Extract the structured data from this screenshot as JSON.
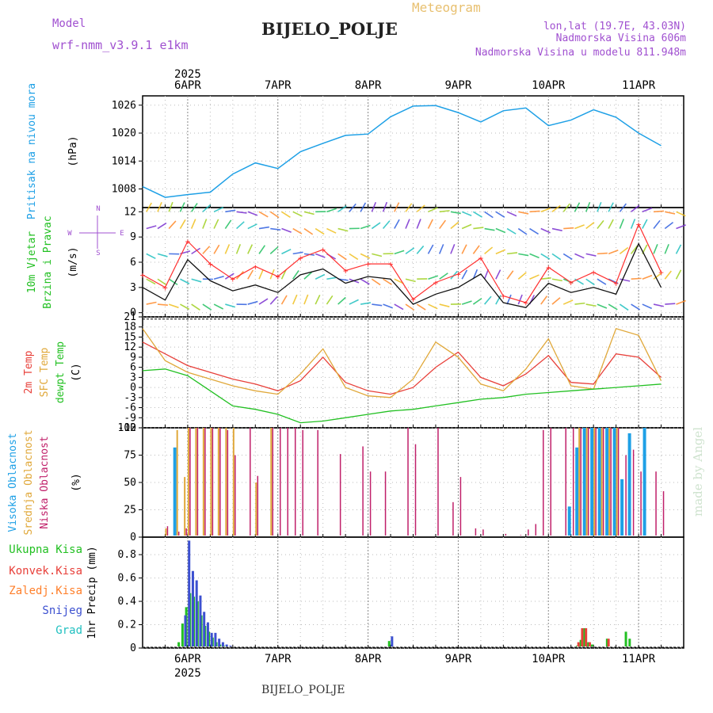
{
  "header": {
    "model_label": "Model",
    "model_name": "wrf-nmm_v3.9.1  e1km",
    "product": "Meteogram",
    "station": "BIJELO_POLJE",
    "coords": "lon,lat (19.7E, 43.03N)",
    "elevation": "Nadmorska Visina 606m",
    "model_elevation": "Nadmorska Visina u modelu 811.948m"
  },
  "footer": {
    "station": "BIJELO_POLJE",
    "credit": "made by Angel"
  },
  "colors": {
    "pressure": "#1ea0e6",
    "temp2m": "#e8403a",
    "sfc": "#e0a83a",
    "dew": "#22c022",
    "high_cloud": "#1ea0e6",
    "mid_cloud": "#e0a83a",
    "low_cloud": "#c0206a",
    "rain": "#22c022",
    "conv": "#e8403a",
    "frz": "#ff7f2a",
    "snow": "#3c50d0",
    "hail": "#20c0c0",
    "speed": "#111111",
    "gust": "#ff3030",
    "grid": "#999999"
  },
  "chart_data": [
    {
      "type": "line",
      "panel": "pressure",
      "ylabel": [
        "Pritisak na nivou mora",
        "(hPa)"
      ],
      "ylim": [
        1004,
        1028
      ],
      "yticks": [
        1008,
        1014,
        1020,
        1026
      ],
      "x_days": [
        "6APR",
        "7APR",
        "8APR",
        "9APR",
        "10APR",
        "11APR"
      ],
      "x_year": "2025",
      "x_hours": [
        0,
        6,
        12,
        18,
        24,
        30,
        36,
        42,
        48,
        54,
        60,
        66,
        72,
        78,
        84,
        90,
        96,
        102,
        108,
        114,
        120,
        126,
        132,
        138
      ],
      "series": [
        {
          "values": [
            1008.5,
            1006.2,
            1006.8,
            1007.3,
            1011.2,
            1013.6,
            1012.4,
            1016.0,
            1017.8,
            1019.5,
            1019.8,
            1023.5,
            1025.8,
            1025.9,
            1024.4,
            1022.4,
            1024.8,
            1025.4,
            1021.6,
            1022.8,
            1025.0,
            1023.4,
            1020.0,
            1017.3
          ]
        }
      ]
    },
    {
      "type": "line",
      "panel": "wind",
      "ylabel": [
        "10m Vjetar",
        "Brzina i Pravac",
        "(m/s)"
      ],
      "legend_compass": [
        "W",
        "N",
        "E",
        "S"
      ],
      "ylim": [
        -0.5,
        12.5
      ],
      "yticks": [
        0,
        3,
        6,
        9,
        12
      ],
      "x_hours": [
        0,
        6,
        12,
        18,
        24,
        30,
        36,
        42,
        48,
        54,
        60,
        66,
        72,
        78,
        84,
        90,
        96,
        102,
        108,
        114,
        120,
        126,
        132,
        138
      ],
      "series": [
        {
          "name": "speed",
          "values": [
            3.0,
            1.5,
            6.3,
            3.8,
            2.6,
            3.3,
            2.4,
            4.5,
            5.2,
            3.5,
            4.3,
            4.0,
            1.0,
            2.2,
            3.0,
            4.6,
            1.2,
            0.6,
            3.5,
            2.4,
            3.0,
            2.2,
            8.2,
            3.0
          ]
        },
        {
          "name": "gust",
          "values": [
            4.5,
            3.0,
            8.5,
            5.8,
            4.0,
            5.5,
            4.3,
            6.5,
            7.5,
            5.0,
            5.8,
            5.8,
            1.6,
            3.6,
            4.6,
            6.5,
            2.0,
            1.2,
            5.4,
            3.6,
            4.8,
            3.5,
            10.5,
            4.8
          ]
        }
      ]
    },
    {
      "type": "line",
      "panel": "temperature",
      "ylabel": [
        "2m Temp",
        "SFC Temp",
        "dewpt Temp",
        "(C)"
      ],
      "ylim": [
        -12,
        21
      ],
      "yticks": [
        -12,
        -9,
        -6,
        -3,
        0,
        3,
        6,
        9,
        12,
        15,
        18,
        21
      ],
      "x_hours": [
        0,
        6,
        12,
        18,
        24,
        30,
        36,
        42,
        48,
        54,
        60,
        66,
        72,
        78,
        84,
        90,
        96,
        102,
        108,
        114,
        120,
        126,
        132,
        138
      ],
      "series": [
        {
          "name": "2m Temp",
          "values": [
            13.5,
            10.0,
            6.5,
            4.5,
            2.5,
            1.0,
            -1.0,
            2.0,
            9.0,
            1.5,
            -1.0,
            -2.0,
            0.0,
            6.0,
            10.5,
            3.0,
            0.5,
            4.0,
            9.5,
            1.5,
            1.0,
            10.0,
            9.0,
            3.0
          ]
        },
        {
          "name": "SFC Temp",
          "values": [
            17.5,
            8.0,
            4.5,
            2.5,
            0.5,
            -1.0,
            -2.0,
            4.0,
            11.5,
            0.0,
            -2.5,
            -3.0,
            2.5,
            13.5,
            9.0,
            1.0,
            -1.0,
            5.5,
            14.5,
            0.5,
            -0.5,
            17.5,
            15.5,
            2.0
          ]
        },
        {
          "name": "dewpt Temp",
          "values": [
            5.0,
            5.5,
            3.5,
            -1.0,
            -5.5,
            -6.5,
            -8.0,
            -10.5,
            -10.0,
            -9.0,
            -8.0,
            -7.0,
            -6.5,
            -5.5,
            -4.5,
            -3.5,
            -3.0,
            -2.0,
            -1.5,
            -1.0,
            -0.5,
            0.0,
            0.5,
            1.0
          ]
        }
      ]
    },
    {
      "type": "bar",
      "panel": "cloud",
      "ylabel": [
        "Visoka Oblacnost",
        "Srednja Oblacnost",
        "Niska Oblacnost",
        "(%)"
      ],
      "ylim": [
        0,
        100
      ],
      "yticks": [
        0,
        25,
        50,
        75,
        100
      ],
      "x_hours": [
        6,
        9,
        11,
        12,
        14,
        16,
        18,
        20,
        22,
        24,
        28,
        30,
        34,
        36,
        38,
        40,
        42,
        46,
        52,
        58,
        60,
        64,
        70,
        72,
        78,
        82,
        84,
        88,
        90,
        96,
        100,
        102,
        104,
        106,
        108,
        112,
        114,
        116,
        118,
        120,
        122,
        124,
        126,
        128,
        130,
        132,
        134,
        136,
        138
      ],
      "series": [
        {
          "name": "high",
          "values": [
            0,
            82,
            0,
            0,
            0,
            0,
            0,
            0,
            0,
            0,
            0,
            0,
            0,
            0,
            0,
            0,
            0,
            0,
            0,
            0,
            0,
            0,
            0,
            0,
            0,
            0,
            0,
            0,
            0,
            0,
            0,
            0,
            0,
            0,
            0,
            0,
            28,
            82,
            100,
            100,
            100,
            100,
            100,
            53,
            95,
            0,
            100,
            0,
            0
          ]
        },
        {
          "name": "mid",
          "values": [
            8,
            98,
            55,
            100,
            100,
            100,
            100,
            100,
            100,
            100,
            0,
            50,
            100,
            0,
            0,
            0,
            0,
            0,
            0,
            0,
            0,
            0,
            0,
            0,
            0,
            0,
            0,
            0,
            0,
            0,
            0,
            0,
            0,
            0,
            0,
            0,
            0,
            100,
            100,
            100,
            100,
            100,
            100,
            0,
            0,
            0,
            0,
            0,
            0
          ]
        },
        {
          "name": "low",
          "values": [
            10,
            5,
            8,
            100,
            100,
            100,
            100,
            100,
            98,
            75,
            100,
            56,
            100,
            100,
            100,
            100,
            98,
            98,
            76,
            83,
            60,
            60,
            100,
            85,
            100,
            32,
            55,
            8,
            7,
            3,
            2,
            7,
            12,
            98,
            100,
            100,
            100,
            100,
            100,
            100,
            100,
            100,
            100,
            75,
            80,
            60,
            0,
            60,
            42
          ]
        }
      ]
    },
    {
      "type": "bar",
      "panel": "precipitation",
      "ylabel": [
        "1hr Precip (mm)"
      ],
      "legend": [
        "Ukupna Kisa",
        "Konvek.Kisa",
        "Zaledj.Kisa",
        "Snijeg",
        "Grad"
      ],
      "ylim": [
        0,
        0.95
      ],
      "yticks": [
        0,
        0.2,
        0.4,
        0.6,
        0.8
      ],
      "x_hours": [
        10,
        11,
        12,
        13,
        14,
        15,
        16,
        17,
        18,
        19,
        20,
        21,
        22,
        23,
        24,
        66,
        116,
        117,
        118,
        119,
        120,
        124,
        129,
        130
      ],
      "series": [
        {
          "name": "Ukupna Kisa",
          "values": [
            0.05,
            0.21,
            0.35,
            0.47,
            0.44,
            0.4,
            0.28,
            0.19,
            0.14,
            0.09,
            0.05,
            0.03,
            0.02,
            0.01,
            0.01,
            0.06,
            0.02,
            0.07,
            0.17,
            0.05,
            0.03,
            0.08,
            0.14,
            0.08
          ]
        },
        {
          "name": "Konvek.Kisa",
          "values": [
            0,
            0,
            0,
            0,
            0,
            0,
            0,
            0,
            0,
            0,
            0,
            0,
            0,
            0,
            0,
            0,
            0.05,
            0.17,
            0.17,
            0.05,
            0,
            0.08,
            0,
            0
          ]
        },
        {
          "name": "Snijeg",
          "values": [
            0,
            0.28,
            0.92,
            0.66,
            0.58,
            0.45,
            0.31,
            0.22,
            0.13,
            0.13,
            0.08,
            0.05,
            0.03,
            0.02,
            0.01,
            0.1,
            0,
            0,
            0,
            0,
            0,
            0,
            0,
            0
          ]
        }
      ]
    }
  ]
}
